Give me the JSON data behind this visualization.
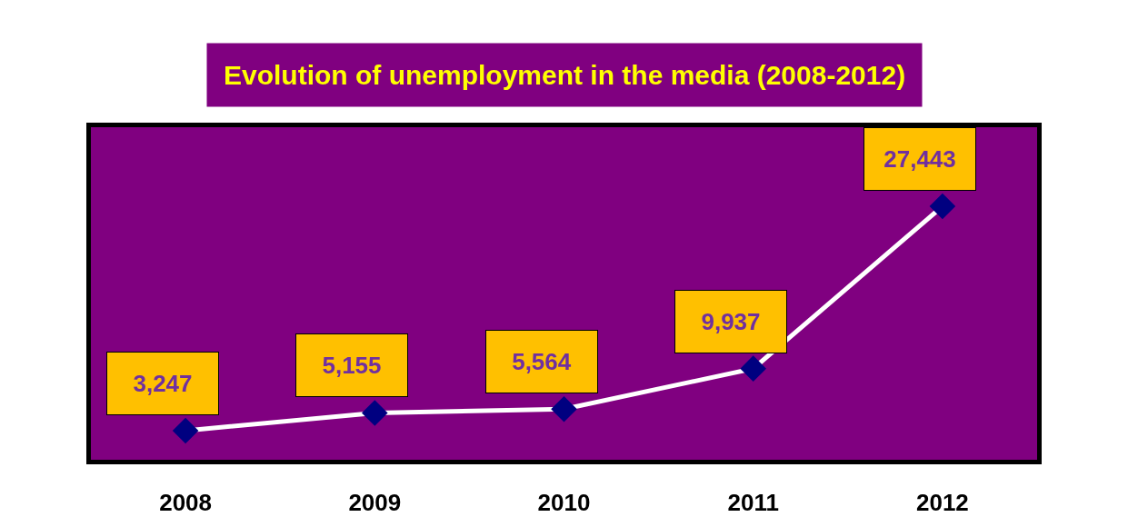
{
  "chart_data": {
    "type": "line",
    "title": "Evolution of unemployment in the media (2008-2012)",
    "categories": [
      "2008",
      "2009",
      "2010",
      "2011",
      "2012"
    ],
    "series": [
      {
        "color": "#ffffff",
        "values": [
          3247,
          5155,
          5564,
          9937,
          27443
        ],
        "value_labels": [
          "3,247",
          "5,155",
          "5,564",
          "9,937",
          "27,443"
        ]
      }
    ],
    "marker": "diamond",
    "line_style": "solid",
    "grid": false,
    "tick_labels": "x"
  }
}
